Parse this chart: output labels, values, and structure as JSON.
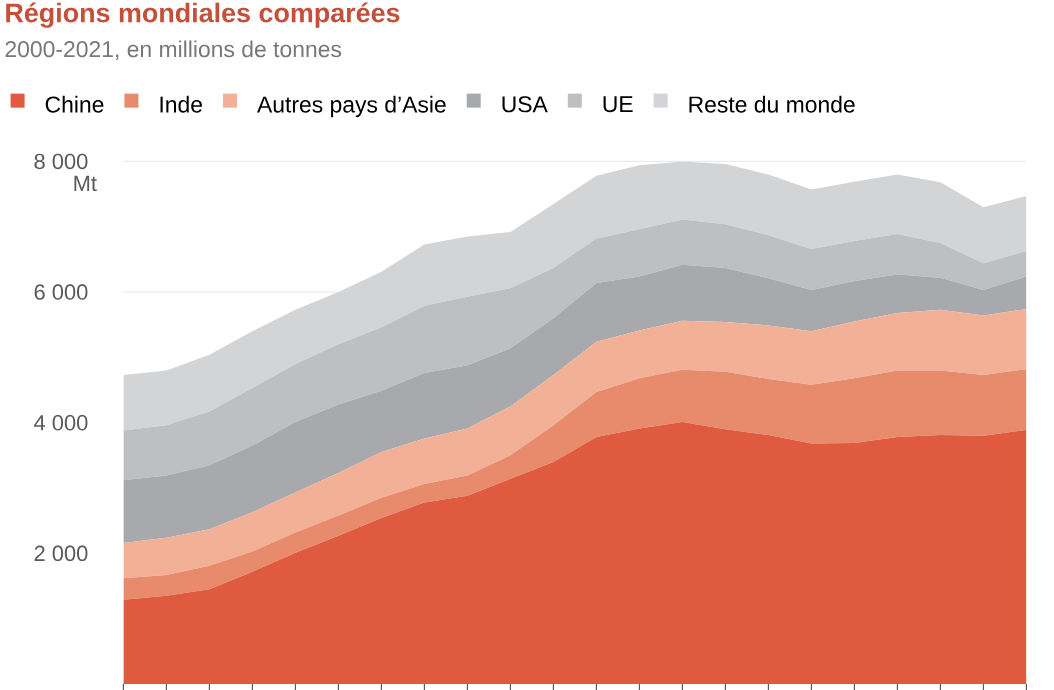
{
  "chart_data": {
    "type": "area",
    "stacked": true,
    "title": "Régions mondiales comparées",
    "subtitle": "2000-2021, en millions de tonnes",
    "ylabel": "Mt",
    "categories": [
      null,
      null,
      null,
      null,
      null,
      null,
      null,
      null,
      null,
      null,
      null,
      null,
      null,
      null,
      null,
      null,
      null,
      null,
      null,
      null,
      null,
      null
    ],
    "series": [
      {
        "name": "Chine",
        "color": "#e05a40",
        "values": [
          1290,
          1350,
          1450,
          1720,
          2010,
          2270,
          2540,
          2780,
          2880,
          3140,
          3400,
          3780,
          3910,
          4010,
          3900,
          3810,
          3680,
          3690,
          3780,
          3810,
          3800,
          3890
        ]
      },
      {
        "name": "Inde",
        "color": "#e88a6c",
        "values": [
          330,
          320,
          360,
          310,
          310,
          310,
          310,
          280,
          310,
          360,
          560,
          690,
          770,
          800,
          880,
          860,
          900,
          990,
          1020,
          990,
          930,
          930
        ]
      },
      {
        "name": "Autres pays d’Asie",
        "color": "#f2b196",
        "values": [
          540,
          570,
          560,
          600,
          610,
          650,
          700,
          700,
          720,
          750,
          770,
          770,
          730,
          750,
          760,
          820,
          820,
          870,
          880,
          930,
          910,
          920
        ]
      },
      {
        "name": "USA",
        "color": "#a7a9ac",
        "values": [
          960,
          950,
          980,
          1020,
          1080,
          1050,
          940,
          1000,
          970,
          890,
          870,
          900,
          830,
          860,
          830,
          720,
          630,
          620,
          590,
          490,
          390,
          500
        ]
      },
      {
        "name": "UE",
        "color": "#bdbfc1",
        "values": [
          760,
          770,
          820,
          880,
          890,
          920,
          970,
          1030,
          1050,
          920,
          770,
          680,
          720,
          690,
          670,
          660,
          630,
          610,
          620,
          530,
          410,
          390
        ]
      },
      {
        "name": "Reste du monde",
        "color": "#d3d4d6",
        "values": [
          850,
          840,
          870,
          870,
          830,
          800,
          850,
          940,
          920,
          860,
          980,
          960,
          980,
          890,
          920,
          930,
          910,
          910,
          910,
          930,
          860,
          840
        ]
      }
    ],
    "ylim": [
      0,
      8000
    ],
    "yticks": [
      {
        "value": 2000,
        "label": "2 000"
      },
      {
        "value": 4000,
        "label": "4 000"
      },
      {
        "value": 6000,
        "label": "6 000"
      },
      {
        "value": 8000,
        "label": "8 000"
      }
    ],
    "grid": "y",
    "legend": "top",
    "tick_labels": "y"
  }
}
